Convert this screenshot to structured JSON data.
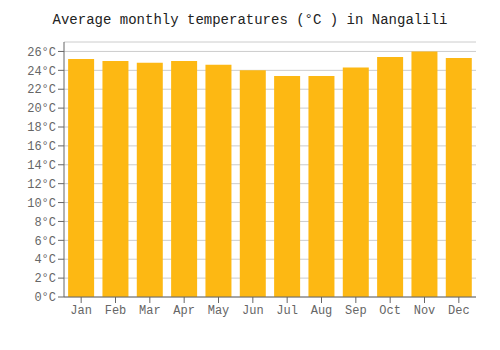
{
  "chart_data": {
    "type": "bar",
    "title": "Average monthly temperatures (°C ) in Nangalili",
    "categories": [
      "Jan",
      "Feb",
      "Mar",
      "Apr",
      "May",
      "Jun",
      "Jul",
      "Aug",
      "Sep",
      "Oct",
      "Nov",
      "Dec"
    ],
    "values": [
      25.2,
      25.0,
      24.8,
      25.0,
      24.6,
      24.0,
      23.4,
      23.4,
      24.3,
      25.4,
      26.0,
      25.3
    ],
    "color": "#FDB813",
    "ylim": [
      0,
      27
    ],
    "yticks": [
      {
        "value": 0,
        "label": "0°C"
      },
      {
        "value": 2,
        "label": "2°C"
      },
      {
        "value": 4,
        "label": "4°C"
      },
      {
        "value": 6,
        "label": "6°C"
      },
      {
        "value": 8,
        "label": "8°C"
      },
      {
        "value": 10,
        "label": "10°C"
      },
      {
        "value": 12,
        "label": "12°C"
      },
      {
        "value": 14,
        "label": "14°C"
      },
      {
        "value": 16,
        "label": "16°C"
      },
      {
        "value": 18,
        "label": "18°C"
      },
      {
        "value": 20,
        "label": "20°C"
      },
      {
        "value": 22,
        "label": "22°C"
      },
      {
        "value": 24,
        "label": "24°C"
      },
      {
        "value": 26,
        "label": "26°C"
      }
    ],
    "grid": true
  }
}
